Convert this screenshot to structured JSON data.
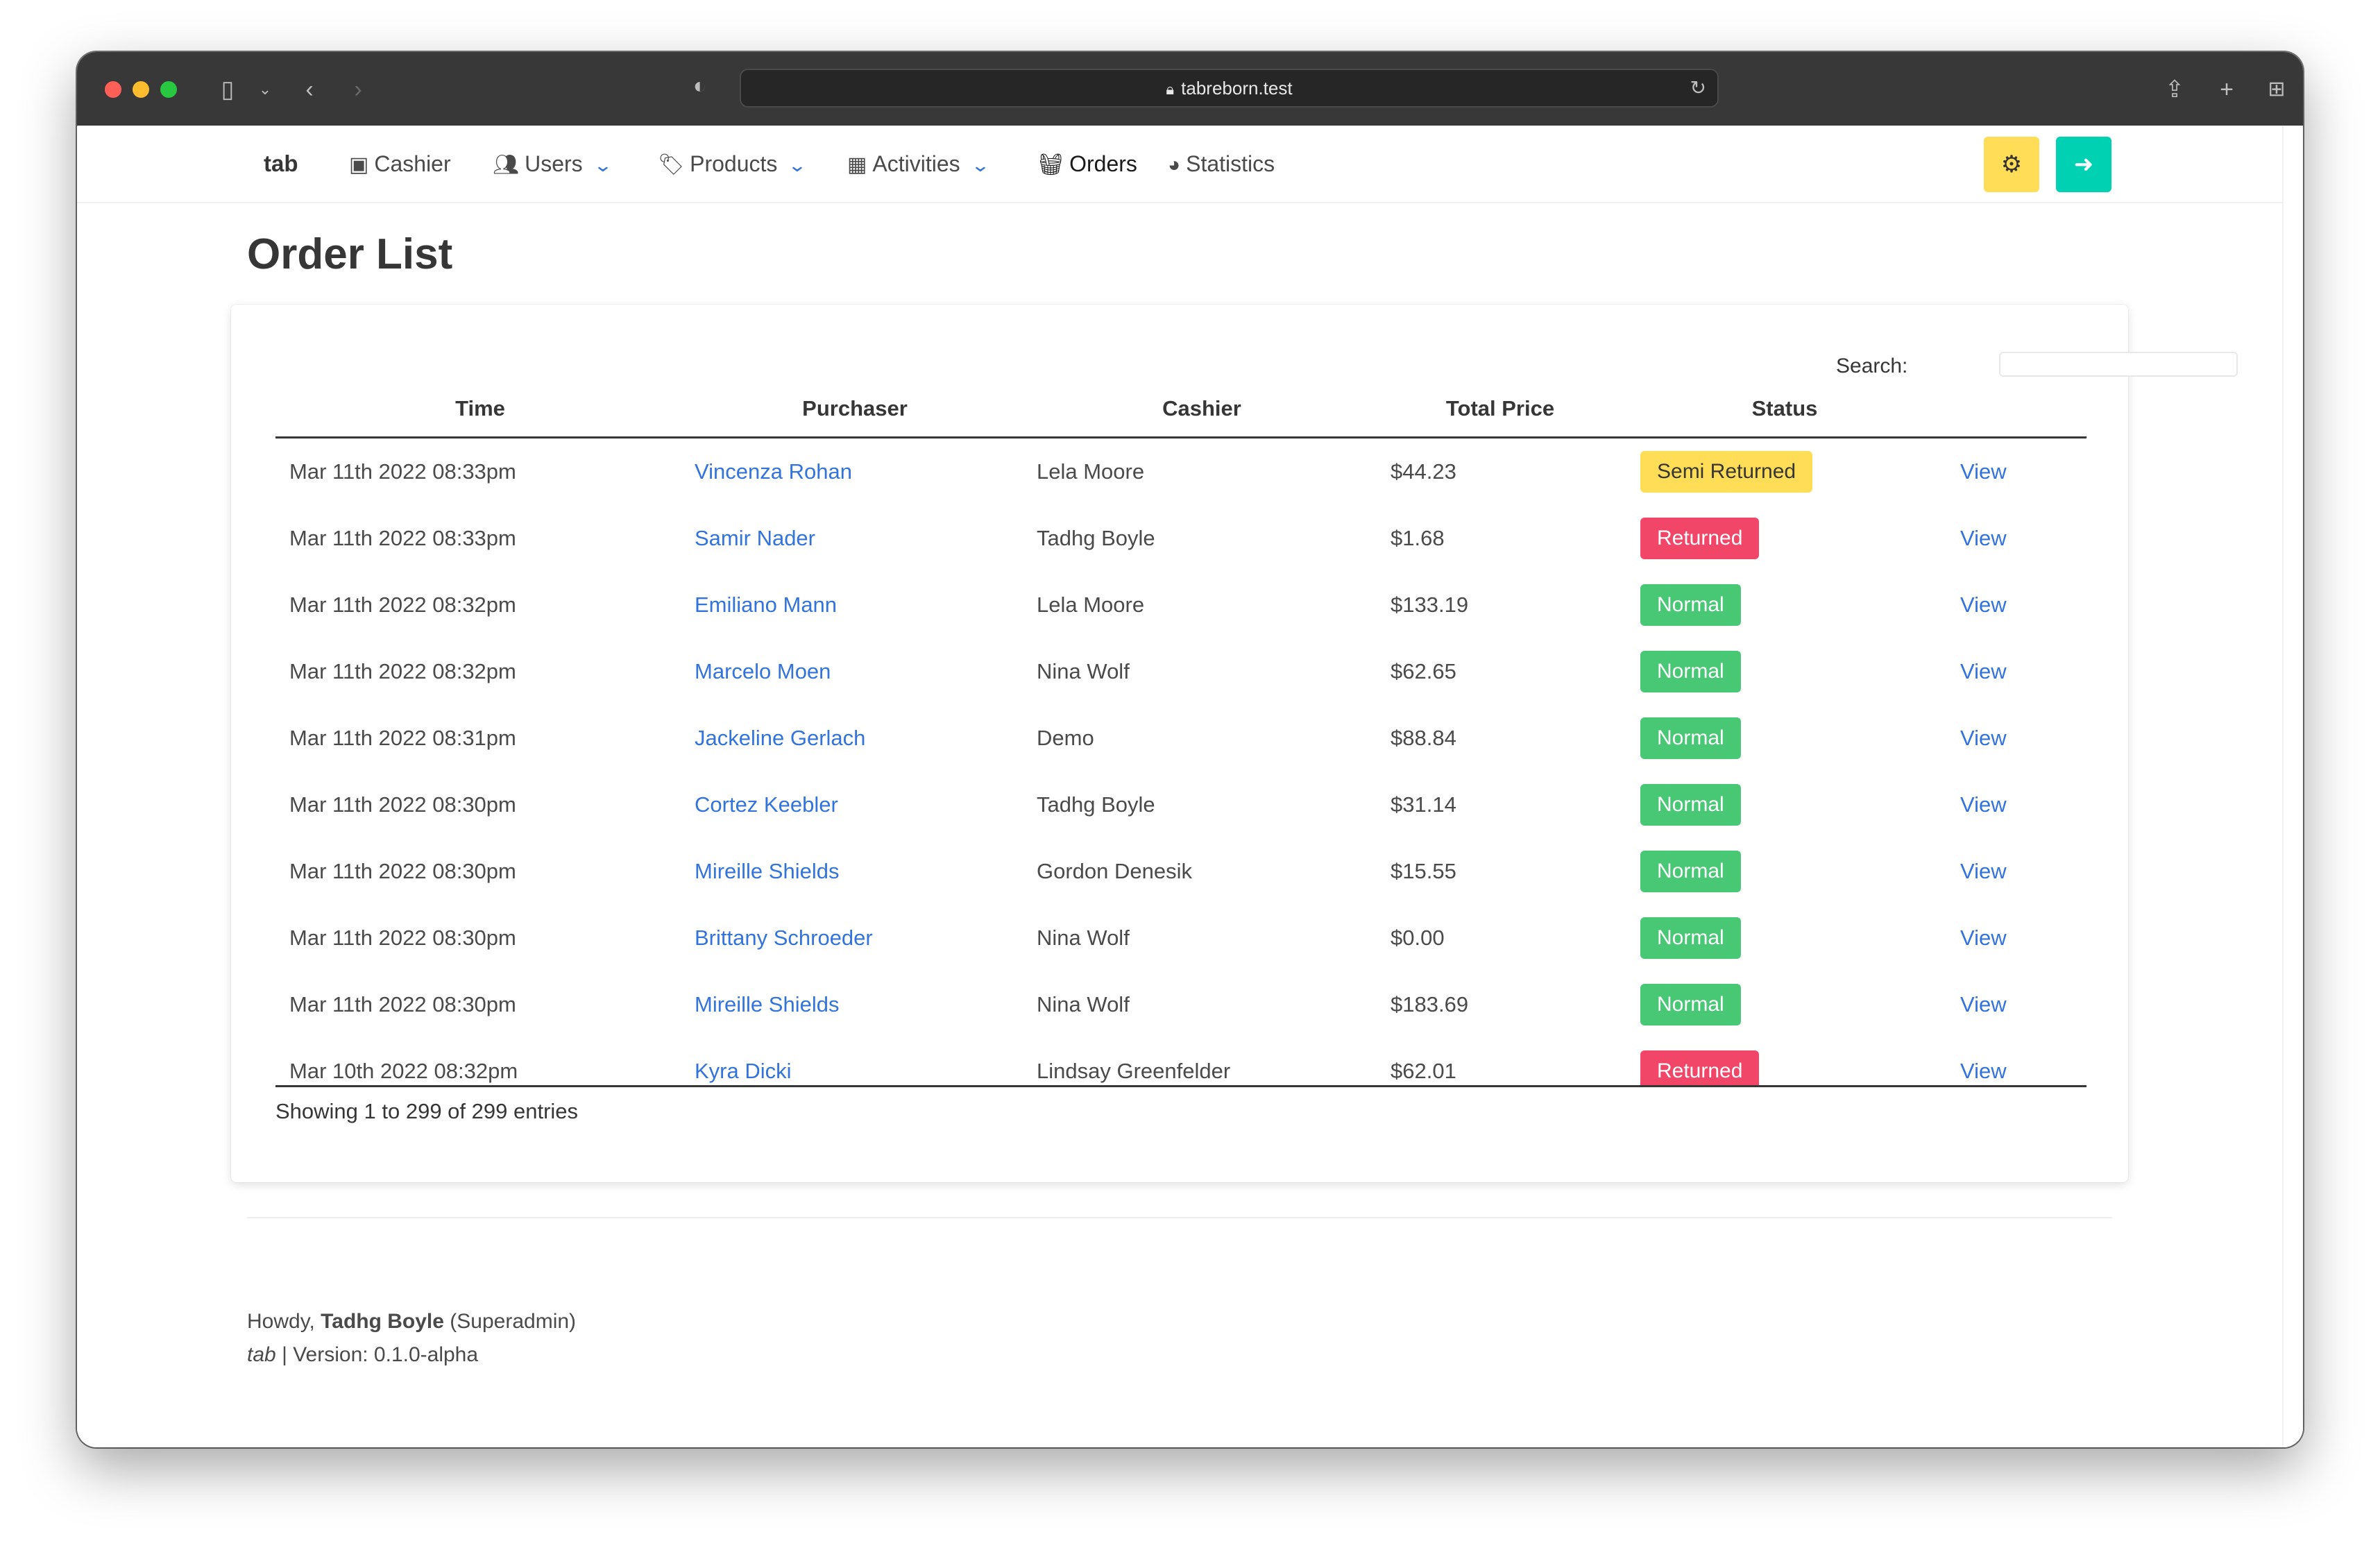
{
  "browser": {
    "url": "tabreborn.test"
  },
  "nav": {
    "brand": "tab",
    "cashier": "Cashier",
    "users": "Users",
    "products": "Products",
    "activities": "Activities",
    "orders": "Orders",
    "statistics": "Statistics"
  },
  "page": {
    "title": "Order List"
  },
  "search": {
    "label": "Search:",
    "value": ""
  },
  "table": {
    "columns": [
      "Time",
      "Purchaser",
      "Cashier",
      "Total Price",
      "Status"
    ],
    "rows": [
      {
        "time": "Mar 11th 2022 08:33pm",
        "purchaser": "Vincenza Rohan",
        "cashier": "Lela Moore",
        "total": "$44.23",
        "status": "Semi Returned",
        "action": "View"
      },
      {
        "time": "Mar 11th 2022 08:33pm",
        "purchaser": "Samir Nader",
        "cashier": "Tadhg Boyle",
        "total": "$1.68",
        "status": "Returned",
        "action": "View"
      },
      {
        "time": "Mar 11th 2022 08:32pm",
        "purchaser": "Emiliano Mann",
        "cashier": "Lela Moore",
        "total": "$133.19",
        "status": "Normal",
        "action": "View"
      },
      {
        "time": "Mar 11th 2022 08:32pm",
        "purchaser": "Marcelo Moen",
        "cashier": "Nina Wolf",
        "total": "$62.65",
        "status": "Normal",
        "action": "View"
      },
      {
        "time": "Mar 11th 2022 08:31pm",
        "purchaser": "Jackeline Gerlach",
        "cashier": "Demo",
        "total": "$88.84",
        "status": "Normal",
        "action": "View"
      },
      {
        "time": "Mar 11th 2022 08:30pm",
        "purchaser": "Cortez Keebler",
        "cashier": "Tadhg Boyle",
        "total": "$31.14",
        "status": "Normal",
        "action": "View"
      },
      {
        "time": "Mar 11th 2022 08:30pm",
        "purchaser": "Mireille Shields",
        "cashier": "Gordon Denesik",
        "total": "$15.55",
        "status": "Normal",
        "action": "View"
      },
      {
        "time": "Mar 11th 2022 08:30pm",
        "purchaser": "Brittany Schroeder",
        "cashier": "Nina Wolf",
        "total": "$0.00",
        "status": "Normal",
        "action": "View"
      },
      {
        "time": "Mar 11th 2022 08:30pm",
        "purchaser": "Mireille Shields",
        "cashier": "Nina Wolf",
        "total": "$183.69",
        "status": "Normal",
        "action": "View"
      },
      {
        "time": "Mar 10th 2022 08:32pm",
        "purchaser": "Kyra Dicki",
        "cashier": "Lindsay Greenfelder",
        "total": "$62.01",
        "status": "Returned",
        "action": "View"
      }
    ],
    "info": "Showing 1 to 299 of 299 entries"
  },
  "footer": {
    "greeting": "Howdy,",
    "user_name": "Tadhg Boyle",
    "role": "(Superadmin)",
    "app_name": "tab",
    "version": "| Version: 0.1.0-alpha"
  },
  "colors": {
    "link": "#3273dc",
    "normal": "#48c774",
    "returned": "#f14668",
    "semi_returned": "#ffdd57",
    "settings_button": "#ffdd57",
    "logout_button": "#00d1b2"
  }
}
